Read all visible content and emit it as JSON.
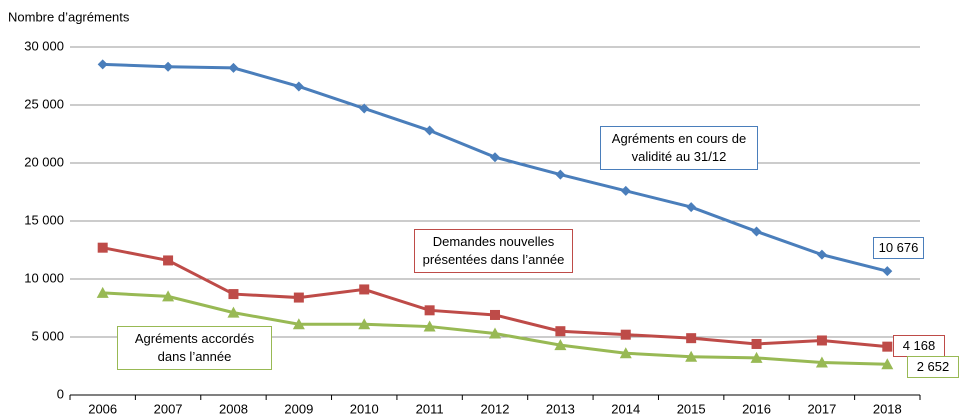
{
  "chart_data": {
    "type": "line",
    "y_label": "Nombre d’agréments",
    "categories": [
      "2006",
      "2007",
      "2008",
      "2009",
      "2010",
      "2011",
      "2012",
      "2013",
      "2014",
      "2015",
      "2016",
      "2017",
      "2018"
    ],
    "series": [
      {
        "name": "Agréments en cours de validité au 31/12",
        "color": "#4a7ebb",
        "marker": "diamond",
        "values": [
          28500,
          28300,
          28200,
          26600,
          24700,
          22800,
          20500,
          19000,
          17600,
          16200,
          14100,
          12100,
          10676
        ],
        "value_labels": [
          null,
          null,
          null,
          null,
          null,
          null,
          null,
          null,
          null,
          null,
          null,
          null,
          "10 676"
        ]
      },
      {
        "name": "Demandes nouvelles présentées dans l’année",
        "color": "#be4b48",
        "marker": "square",
        "values": [
          12700,
          11600,
          8700,
          8400,
          9100,
          7300,
          6900,
          5500,
          5200,
          4900,
          4400,
          4700,
          4168
        ],
        "value_labels": [
          null,
          null,
          null,
          null,
          null,
          null,
          null,
          null,
          null,
          null,
          null,
          null,
          "4 168"
        ]
      },
      {
        "name": "Agréments accordés dans l’année",
        "color": "#98b954",
        "marker": "triangle",
        "values": [
          8800,
          8500,
          7100,
          6100,
          6100,
          5900,
          5300,
          4300,
          3600,
          3300,
          3200,
          2800,
          2652
        ],
        "value_labels": [
          null,
          null,
          null,
          null,
          null,
          null,
          null,
          null,
          null,
          null,
          null,
          null,
          "2 652"
        ]
      }
    ],
    "ylim": [
      0,
      30000
    ],
    "yticks": [
      0,
      {
        "value": 5000,
        "label": "5 000"
      },
      {
        "value": 10000,
        "label": "10 000"
      },
      {
        "value": 15000,
        "label": "15 000"
      },
      {
        "value": 20000,
        "label": "20 000"
      },
      {
        "value": 25000,
        "label": "25 000"
      },
      {
        "value": 30000,
        "label": "30 000"
      }
    ],
    "grid": true
  }
}
